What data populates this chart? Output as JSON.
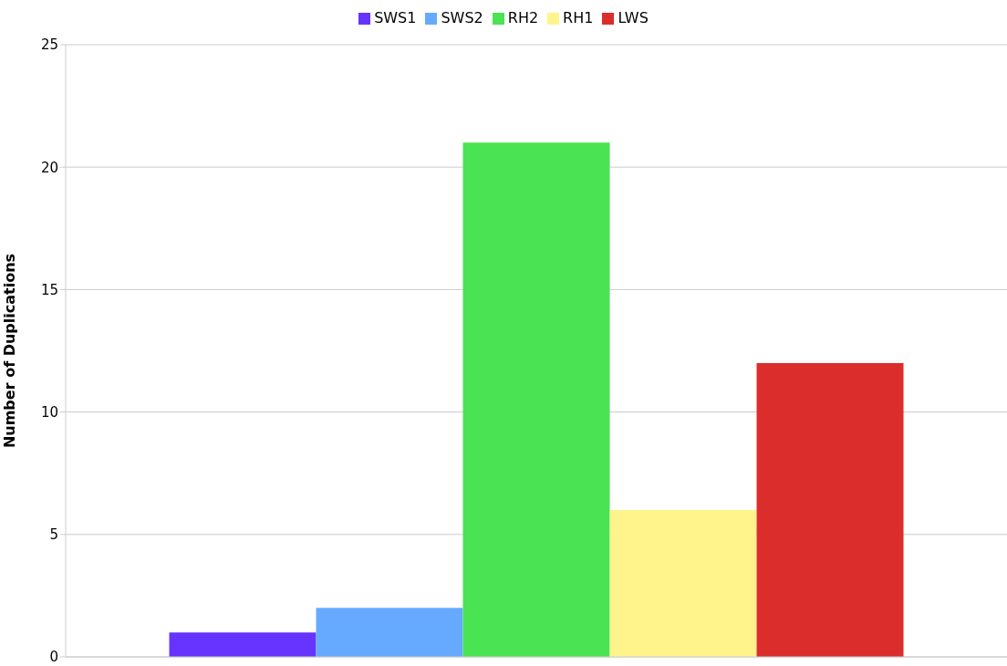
{
  "chart_data": {
    "type": "bar",
    "ylabel": "Number of Duplications",
    "categories": [
      null
    ],
    "series": [
      {
        "name": "SWS1",
        "color": "#6633ff",
        "values": [
          1
        ]
      },
      {
        "name": "SWS2",
        "color": "#66aaff",
        "values": [
          2
        ]
      },
      {
        "name": "RH2",
        "color": "#4ae354",
        "values": [
          21
        ]
      },
      {
        "name": "RH1",
        "color": "#fff48c",
        "values": [
          6
        ]
      },
      {
        "name": "LWS",
        "color": "#dc2d2d",
        "values": [
          12
        ]
      }
    ],
    "ylim": [
      0,
      25
    ],
    "yticks": [
      0,
      5,
      10,
      15,
      20,
      25
    ],
    "grid": "y",
    "legend": "top"
  }
}
